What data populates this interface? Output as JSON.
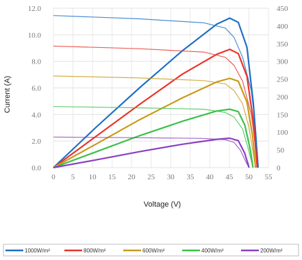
{
  "chart_data": {
    "type": "line",
    "title": "",
    "xlabel": "Voltage (V)",
    "ylabel": "Current (A)",
    "xlim": [
      0,
      50
    ],
    "ylim": [
      0,
      12
    ],
    "y2lim": [
      0,
      450
    ],
    "x_ticks": [
      "0",
      "5",
      "10",
      "15",
      "20",
      "25",
      "30",
      "35",
      "40",
      "45",
      "50",
      "55"
    ],
    "y_ticks": [
      "0.0",
      "2.0",
      "4.0",
      "6.0",
      "8.0",
      "10.0",
      "12.0"
    ],
    "y2_ticks": [
      "0",
      "50",
      "100",
      "150",
      "200",
      "250",
      "300",
      "350",
      "400",
      "450"
    ],
    "grid": true,
    "legend_position": "bottom",
    "series": [
      {
        "name": "1000W/m²",
        "color": "#1f6fc5",
        "iv": [
          [
            0,
            11.45
          ],
          [
            20,
            11.2
          ],
          [
            35,
            10.9
          ],
          [
            40,
            10.5
          ],
          [
            42,
            9.8
          ],
          [
            44,
            8.3
          ],
          [
            46,
            5.8
          ],
          [
            47,
            3.0
          ],
          [
            47.6,
            0
          ]
        ],
        "pv": [
          [
            0,
            0
          ],
          [
            10,
            115
          ],
          [
            20,
            225
          ],
          [
            30,
            330
          ],
          [
            38,
            405
          ],
          [
            41,
            422
          ],
          [
            43,
            410
          ],
          [
            45,
            340
          ],
          [
            46.5,
            180
          ],
          [
            47.6,
            0
          ]
        ]
      },
      {
        "name": "800W/m²",
        "color": "#e8342a",
        "iv": [
          [
            0,
            9.15
          ],
          [
            20,
            8.95
          ],
          [
            35,
            8.7
          ],
          [
            40,
            8.3
          ],
          [
            42,
            7.7
          ],
          [
            44,
            6.5
          ],
          [
            46,
            4.0
          ],
          [
            47,
            1.6
          ],
          [
            47.4,
            0
          ]
        ],
        "pv": [
          [
            0,
            0
          ],
          [
            10,
            89
          ],
          [
            20,
            178
          ],
          [
            30,
            264
          ],
          [
            38,
            320
          ],
          [
            41,
            334
          ],
          [
            43,
            322
          ],
          [
            45,
            258
          ],
          [
            46.5,
            130
          ],
          [
            47.4,
            0
          ]
        ]
      },
      {
        "name": "600W/m²",
        "color": "#c89a1a",
        "iv": [
          [
            0,
            6.9
          ],
          [
            20,
            6.75
          ],
          [
            35,
            6.55
          ],
          [
            40,
            6.3
          ],
          [
            42,
            5.8
          ],
          [
            44,
            4.8
          ],
          [
            45.5,
            3.0
          ],
          [
            46.5,
            1.0
          ],
          [
            47.0,
            0
          ]
        ],
        "pv": [
          [
            0,
            0
          ],
          [
            10,
            67
          ],
          [
            20,
            135
          ],
          [
            30,
            197
          ],
          [
            38,
            242
          ],
          [
            41,
            252
          ],
          [
            43,
            244
          ],
          [
            45,
            185
          ],
          [
            46.3,
            90
          ],
          [
            47.0,
            0
          ]
        ]
      },
      {
        "name": "400W/m²",
        "color": "#3ac04a",
        "iv": [
          [
            0,
            4.6
          ],
          [
            20,
            4.5
          ],
          [
            35,
            4.4
          ],
          [
            40,
            4.15
          ],
          [
            42,
            3.8
          ],
          [
            44,
            2.9
          ],
          [
            45.5,
            1.2
          ],
          [
            46.4,
            0
          ]
        ],
        "pv": [
          [
            0,
            0
          ],
          [
            10,
            45
          ],
          [
            20,
            90
          ],
          [
            30,
            131
          ],
          [
            38,
            160
          ],
          [
            41,
            165
          ],
          [
            43,
            158
          ],
          [
            44.5,
            120
          ],
          [
            45.8,
            50
          ],
          [
            46.4,
            0
          ]
        ]
      },
      {
        "name": "200W/m²",
        "color": "#8a3fc2",
        "iv": [
          [
            0,
            2.3
          ],
          [
            20,
            2.25
          ],
          [
            35,
            2.2
          ],
          [
            40,
            2.1
          ],
          [
            42,
            1.9
          ],
          [
            43.5,
            1.3
          ],
          [
            44.8,
            0.4
          ],
          [
            45.5,
            0
          ]
        ],
        "pv": [
          [
            0,
            0
          ],
          [
            10,
            22
          ],
          [
            20,
            45
          ],
          [
            30,
            66
          ],
          [
            38,
            80
          ],
          [
            41,
            83
          ],
          [
            43,
            76
          ],
          [
            44.5,
            40
          ],
          [
            45.5,
            0
          ]
        ]
      }
    ]
  }
}
